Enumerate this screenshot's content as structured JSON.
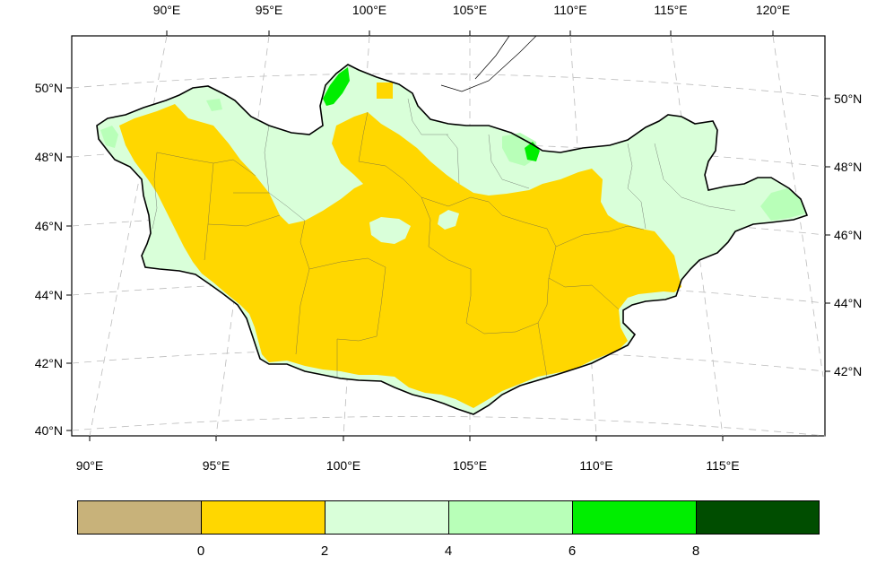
{
  "map": {
    "top_lon_labels": [
      "90°E",
      "95°E",
      "100°E",
      "105°E",
      "110°E",
      "115°E",
      "120°E"
    ],
    "bottom_lon_labels": [
      "90°E",
      "95°E",
      "100°E",
      "105°E",
      "110°E",
      "115°E"
    ],
    "left_lat_labels": [
      "50°N",
      "48°N",
      "46°N",
      "44°N",
      "42°N",
      "40°N"
    ],
    "right_lat_labels": [
      "50°N",
      "48°N",
      "46°N",
      "44°N",
      "42°N"
    ],
    "region": "Mongolia",
    "field": "gridded values shaded by class"
  },
  "legend": {
    "colors": [
      "#c8b27a",
      "#ffd700",
      "#d9ffd9",
      "#b8ffb8",
      "#00ee00",
      "#004d00"
    ],
    "tick_labels": [
      "0",
      "2",
      "4",
      "6",
      "8"
    ]
  }
}
